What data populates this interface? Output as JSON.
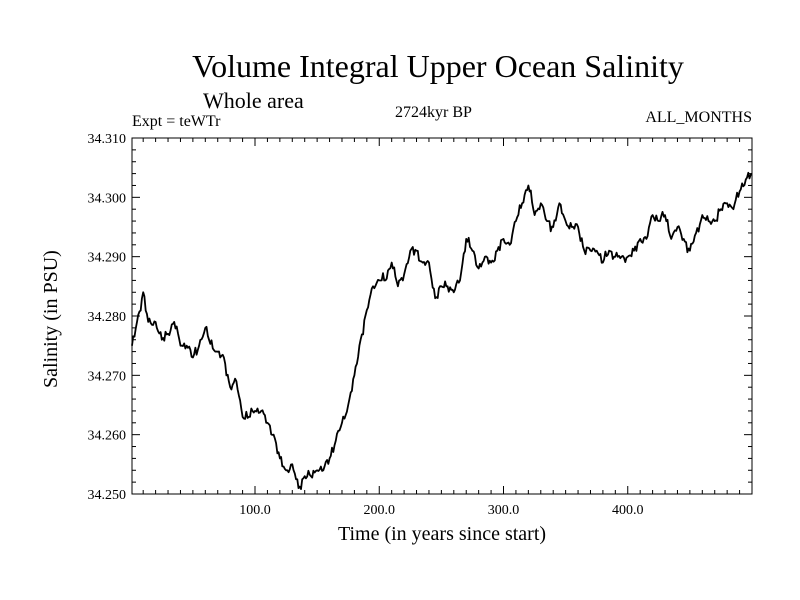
{
  "chart_data": {
    "type": "line",
    "title": "Volume Integral Upper Ocean Salinity",
    "subtitle": "Whole area",
    "expt_label": "Expt = teWTr",
    "center_label": "2724kyr BP",
    "right_label": "ALL_MONTHS",
    "xlabel": "Time (in years since start)",
    "ylabel": "Salinity (in PSU)",
    "xlim": [
      1,
      500
    ],
    "ylim": [
      34.25,
      34.31
    ],
    "x_ticks": [
      {
        "value": 100,
        "label": "100.0"
      },
      {
        "value": 200,
        "label": "200.0"
      },
      {
        "value": 300,
        "label": "300.0"
      },
      {
        "value": 400,
        "label": "400.0"
      }
    ],
    "y_ticks": [
      {
        "value": 34.25,
        "label": "34.250"
      },
      {
        "value": 34.26,
        "label": "34.260"
      },
      {
        "value": 34.27,
        "label": "34.270"
      },
      {
        "value": 34.28,
        "label": "34.280"
      },
      {
        "value": 34.29,
        "label": "34.290"
      },
      {
        "value": 34.3,
        "label": "34.300"
      },
      {
        "value": 34.31,
        "label": "34.310"
      }
    ],
    "series": [
      {
        "name": "Salinity",
        "x": [
          1,
          5,
          10,
          14,
          20,
          25,
          30,
          35,
          40,
          45,
          50,
          55,
          60,
          63,
          68,
          75,
          80,
          85,
          90,
          95,
          100,
          105,
          110,
          115,
          120,
          125,
          130,
          135,
          140,
          145,
          150,
          155,
          160,
          165,
          170,
          175,
          180,
          185,
          190,
          195,
          200,
          205,
          210,
          215,
          220,
          225,
          230,
          235,
          240,
          245,
          250,
          255,
          260,
          265,
          270,
          275,
          280,
          285,
          290,
          295,
          300,
          305,
          310,
          315,
          320,
          325,
          330,
          335,
          340,
          345,
          350,
          355,
          360,
          365,
          370,
          375,
          380,
          385,
          390,
          395,
          400,
          405,
          410,
          415,
          420,
          425,
          430,
          435,
          440,
          445,
          450,
          455,
          460,
          465,
          470,
          475,
          480,
          485,
          490,
          495,
          500
        ],
        "values": [
          34.275,
          34.279,
          34.284,
          34.279,
          34.279,
          34.276,
          34.277,
          34.279,
          34.275,
          34.275,
          34.273,
          34.275,
          34.278,
          34.276,
          34.274,
          34.273,
          34.268,
          34.269,
          34.263,
          34.263,
          34.264,
          34.264,
          34.262,
          34.26,
          34.256,
          34.254,
          34.255,
          34.251,
          34.253,
          34.253,
          34.254,
          34.254,
          34.256,
          34.259,
          34.262,
          34.265,
          34.27,
          34.276,
          34.281,
          34.285,
          34.286,
          34.286,
          34.289,
          34.285,
          34.287,
          34.291,
          34.291,
          34.289,
          34.289,
          34.283,
          34.285,
          34.285,
          34.284,
          34.286,
          34.293,
          34.291,
          34.288,
          34.29,
          34.289,
          34.291,
          34.293,
          34.292,
          34.296,
          34.299,
          34.302,
          34.297,
          34.299,
          34.296,
          34.295,
          34.299,
          34.296,
          34.295,
          34.295,
          34.291,
          34.291,
          34.291,
          34.289,
          34.291,
          34.29,
          34.29,
          34.29,
          34.291,
          34.293,
          34.293,
          34.297,
          34.296,
          34.297,
          34.293,
          34.295,
          34.293,
          34.291,
          34.294,
          34.297,
          34.296,
          34.296,
          34.298,
          34.299,
          34.298,
          34.301,
          34.303,
          34.304
        ]
      }
    ],
    "grid": false,
    "line_color": "#000000"
  }
}
